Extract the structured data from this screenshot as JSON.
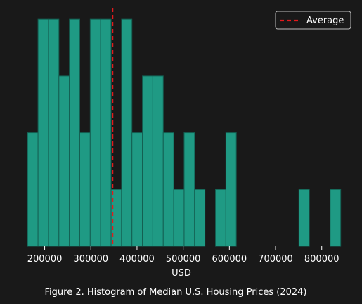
{
  "chart_data": {
    "type": "bar",
    "subtype": "histogram",
    "caption": "Figure 2. Histogram of Median U.S. Housing Prices (2024)",
    "xlabel": "USD",
    "ylabel": "",
    "xlim": [
      155000,
      840000
    ],
    "ylim": [
      0,
      4.2
    ],
    "xticks": [
      200000,
      300000,
      400000,
      500000,
      600000,
      700000,
      800000
    ],
    "xtick_labels": [
      "200000",
      "300000",
      "400000",
      "500000",
      "600000",
      "700000",
      "800000"
    ],
    "grid": false,
    "bin_width": 22600,
    "bin_starts": [
      163000,
      185600,
      208200,
      230800,
      253400,
      276000,
      298600,
      321200,
      343800,
      366400,
      389000,
      411600,
      434200,
      456800,
      479400,
      502000,
      524600,
      547200,
      569800,
      592400,
      615000,
      637600,
      660200,
      682800,
      705400,
      728000,
      750600,
      773200,
      795800,
      818400
    ],
    "counts": [
      2,
      4,
      4,
      3,
      4,
      2,
      4,
      4,
      1,
      4,
      2,
      3,
      3,
      2,
      1,
      2,
      1,
      0,
      1,
      2,
      0,
      0,
      0,
      0,
      0,
      0,
      1,
      0,
      0,
      1
    ],
    "average": 347000,
    "series": [
      {
        "name": "Average",
        "type": "vline",
        "value": 347000,
        "color": "#e31a1c",
        "style": "dashed"
      }
    ],
    "legend_position": "top-right",
    "colors": {
      "bar": "#1f9a84",
      "bar_edge": "#145f52",
      "average_line": "#e31a1c",
      "background": "#191919",
      "text": "#ffffff"
    }
  }
}
